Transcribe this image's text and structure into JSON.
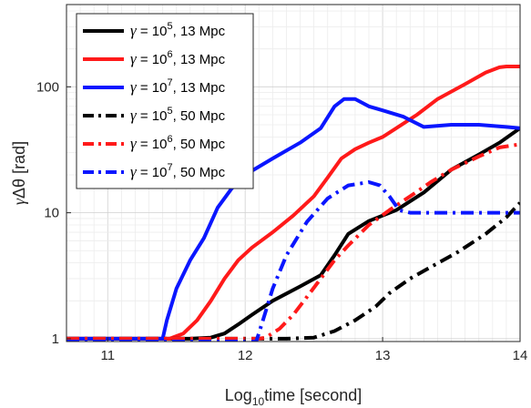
{
  "chart_data": {
    "type": "line",
    "title": "",
    "xlabel": "Log10time [second]",
    "xlabel_parts": {
      "base": "Log",
      "sub": "10",
      "rest": "time [second]"
    },
    "ylabel": "γΔθ [rad]",
    "ylabel_parts": {
      "gamma": "γ",
      "delta": "Δθ",
      "unit": " [rad]"
    },
    "xlim": [
      10.7,
      14
    ],
    "ylim": [
      0.95,
      450
    ],
    "yscale": "log",
    "grid": true,
    "minor_grid": true,
    "legend_position": "top-left",
    "x_ticks": [
      11,
      12,
      13,
      14
    ],
    "x_tick_labels": [
      "11",
      "12",
      "13",
      "14"
    ],
    "y_ticks": [
      1,
      10,
      100
    ],
    "y_tick_labels": [
      "1",
      "10",
      "100"
    ],
    "series": [
      {
        "name": "γ = 10^5, 13 Mpc",
        "gamma_exp": "5",
        "dist": "13 Mpc",
        "color": "#000000",
        "style": "solid",
        "x": [
          10.7,
          11.6,
          11.75,
          11.85,
          11.95,
          12.05,
          12.2,
          12.4,
          12.55,
          12.65,
          12.75,
          12.9,
          13.1,
          13.3,
          13.5,
          13.7,
          13.85,
          14.0
        ],
        "y": [
          1.0,
          1.0,
          1.02,
          1.1,
          1.3,
          1.55,
          2.0,
          2.6,
          3.2,
          4.6,
          6.8,
          8.6,
          10.5,
          14.5,
          22.0,
          29.0,
          36.0,
          47.0
        ]
      },
      {
        "name": "γ = 10^6, 13 Mpc",
        "gamma_exp": "6",
        "dist": "13 Mpc",
        "color": "#ff1a1a",
        "style": "solid",
        "x": [
          10.7,
          11.45,
          11.55,
          11.65,
          11.75,
          11.85,
          11.95,
          12.05,
          12.2,
          12.35,
          12.5,
          12.6,
          12.7,
          12.8,
          12.9,
          13.0,
          13.1,
          13.25,
          13.4,
          13.6,
          13.75,
          13.85,
          13.9,
          14.0
        ],
        "y": [
          1.0,
          1.0,
          1.1,
          1.4,
          2.0,
          3.0,
          4.2,
          5.3,
          7.0,
          9.5,
          13.5,
          19.0,
          27.0,
          32.0,
          36.0,
          40.0,
          47.0,
          60.0,
          80.0,
          105.0,
          130.0,
          143.0,
          145.0,
          145.0
        ]
      },
      {
        "name": "γ = 10^7, 13 Mpc",
        "gamma_exp": "7",
        "dist": "13 Mpc",
        "color": "#0a16ff",
        "style": "solid",
        "x": [
          10.7,
          11.4,
          11.43,
          11.5,
          11.6,
          11.7,
          11.8,
          11.9,
          12.0,
          12.2,
          12.4,
          12.55,
          12.65,
          12.72,
          12.8,
          12.9,
          13.0,
          13.15,
          13.3,
          13.5,
          13.7,
          13.9,
          14.0
        ],
        "y": [
          1.0,
          1.0,
          1.4,
          2.5,
          4.2,
          6.3,
          11.0,
          15.5,
          20.0,
          27.0,
          36.0,
          47.0,
          70.0,
          80.0,
          80.0,
          70.0,
          65.0,
          58.0,
          48.0,
          50.0,
          50.0,
          48.0,
          47.0
        ]
      },
      {
        "name": "γ = 10^5, 50 Mpc",
        "gamma_exp": "5",
        "dist": "50 Mpc",
        "color": "#000000",
        "style": "dashdot",
        "x": [
          10.7,
          12.3,
          12.5,
          12.65,
          12.8,
          12.95,
          13.05,
          13.2,
          13.35,
          13.55,
          13.75,
          13.9,
          14.0
        ],
        "y": [
          1.0,
          1.0,
          1.02,
          1.15,
          1.4,
          1.8,
          2.3,
          3.0,
          3.7,
          4.9,
          6.8,
          9.2,
          12.0
        ]
      },
      {
        "name": "γ = 10^6, 50 Mpc",
        "gamma_exp": "6",
        "dist": "50 Mpc",
        "color": "#ff1a1a",
        "style": "dashdot",
        "x": [
          10.7,
          12.1,
          12.15,
          12.25,
          12.35,
          12.45,
          12.55,
          12.65,
          12.75,
          12.9,
          13.05,
          13.2,
          13.35,
          13.5,
          13.7,
          13.85,
          14.0
        ],
        "y": [
          1.0,
          1.0,
          1.02,
          1.2,
          1.55,
          2.15,
          3.0,
          4.2,
          5.5,
          8.0,
          10.5,
          13.5,
          17.5,
          22.0,
          28.0,
          33.0,
          35.0
        ]
      },
      {
        "name": "γ = 10^7, 50 Mpc",
        "gamma_exp": "7",
        "dist": "50 Mpc",
        "color": "#0a16ff",
        "style": "dashdot",
        "x": [
          10.7,
          12.08,
          12.12,
          12.2,
          12.3,
          12.45,
          12.6,
          12.75,
          12.9,
          12.98,
          13.05,
          13.12,
          13.2,
          13.4,
          13.7,
          14.0
        ],
        "y": [
          0.95,
          0.95,
          1.3,
          2.5,
          4.6,
          8.5,
          13.0,
          16.5,
          17.5,
          16.5,
          13.5,
          10.5,
          10.0,
          10.0,
          10.0,
          10.0
        ]
      }
    ]
  }
}
